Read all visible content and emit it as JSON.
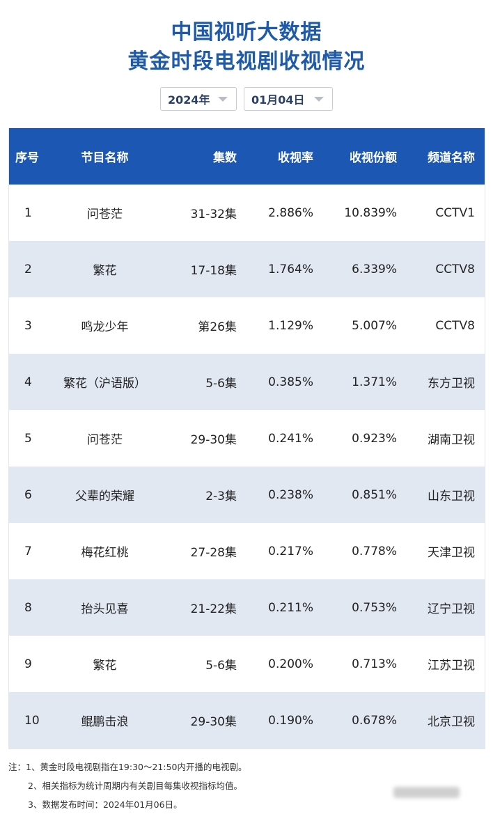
{
  "header": {
    "title_line1": "中国视听大数据",
    "title_line2": "黄金时段电视剧收视情况"
  },
  "filters": {
    "year": "2024年",
    "date": "01月04日",
    "dropdown_icon": "caret-down-icon"
  },
  "colors": {
    "title": "#1e5aa8",
    "table_header_bg": "#1b57b3",
    "row_alt_bg": "#e1e8f2"
  },
  "table": {
    "columns": [
      "序号",
      "节目名称",
      "集数",
      "收视率",
      "收视份额",
      "频道名称"
    ],
    "rows": [
      {
        "no": "1",
        "name": "问苍茫",
        "episodes": "31-32集",
        "rating": "2.886%",
        "share": "10.839%",
        "channel": "CCTV1"
      },
      {
        "no": "2",
        "name": "繁花",
        "episodes": "17-18集",
        "rating": "1.764%",
        "share": "6.339%",
        "channel": "CCTV8"
      },
      {
        "no": "3",
        "name": "鸣龙少年",
        "episodes": "第26集",
        "rating": "1.129%",
        "share": "5.007%",
        "channel": "CCTV8"
      },
      {
        "no": "4",
        "name": "繁花（沪语版）",
        "episodes": "5-6集",
        "rating": "0.385%",
        "share": "1.371%",
        "channel": "东方卫视"
      },
      {
        "no": "5",
        "name": "问苍茫",
        "episodes": "29-30集",
        "rating": "0.241%",
        "share": "0.923%",
        "channel": "湖南卫视"
      },
      {
        "no": "6",
        "name": "父辈的荣耀",
        "episodes": "2-3集",
        "rating": "0.238%",
        "share": "0.851%",
        "channel": "山东卫视"
      },
      {
        "no": "7",
        "name": "梅花红桃",
        "episodes": "27-28集",
        "rating": "0.217%",
        "share": "0.778%",
        "channel": "天津卫视"
      },
      {
        "no": "8",
        "name": "抬头见喜",
        "episodes": "21-22集",
        "rating": "0.211%",
        "share": "0.753%",
        "channel": "辽宁卫视"
      },
      {
        "no": "9",
        "name": "繁花",
        "episodes": "5-6集",
        "rating": "0.200%",
        "share": "0.713%",
        "channel": "江苏卫视"
      },
      {
        "no": "10",
        "name": "鲲鹏击浪",
        "episodes": "29-30集",
        "rating": "0.190%",
        "share": "0.678%",
        "channel": "北京卫视"
      }
    ]
  },
  "notes": {
    "line1": "注：1、黄金时段电视剧指在19:30～21:50内开播的电视剧。",
    "line2": "2、相关指标为统计周期内有关剧目每集收视指标均值。",
    "line3": "3、数据发布时间：2024年01月06日。"
  }
}
